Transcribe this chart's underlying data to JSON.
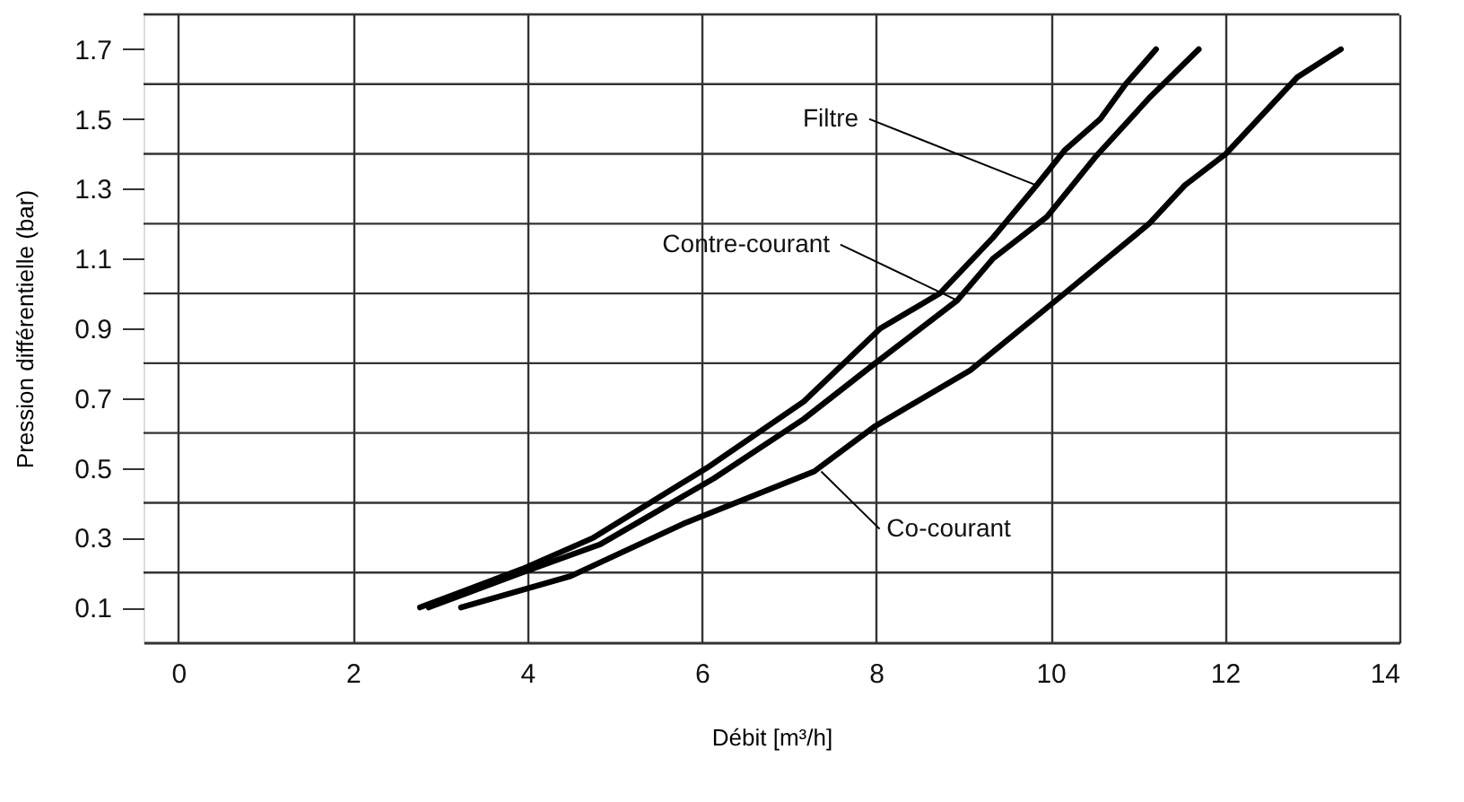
{
  "chart_data": {
    "type": "line",
    "xlabel": "Débit [m³/h]",
    "ylabel": "Pression différentielle (bar)",
    "xlim": [
      -0.4,
      14
    ],
    "xticks": [
      0,
      2,
      4,
      6,
      8,
      10,
      12,
      14
    ],
    "ylim": [
      0,
      1.8
    ],
    "yticks": [
      0.1,
      {
        "value": 0.2,
        "label": null
      },
      0.3,
      {
        "value": 0.4,
        "label": null
      },
      0.5,
      {
        "value": 0.6,
        "label": null
      },
      0.7,
      {
        "value": 0.8,
        "label": null
      },
      0.9,
      {
        "value": 1.0,
        "label": null
      },
      1.1,
      {
        "value": 1.2,
        "label": null
      },
      1.3,
      {
        "value": 1.4,
        "label": null
      },
      1.5,
      {
        "value": 1.6,
        "label": null
      },
      1.7,
      {
        "value": 1.8,
        "label": null
      }
    ],
    "grid": true,
    "legend": false,
    "line_style": "solid",
    "marker": "none",
    "series": [
      {
        "color": "#000000",
        "x": [
          2.77,
          3.94,
          4.76,
          6.06,
          7.17,
          8.05,
          8.73,
          9.34,
          9.84,
          10.16,
          10.57,
          10.86,
          11.21
        ],
        "values": [
          0.1,
          0.21,
          0.3,
          0.5,
          0.69,
          0.9,
          1.0,
          1.16,
          1.31,
          1.41,
          1.5,
          1.6,
          1.7
        ]
      },
      {
        "color": "#000000",
        "x": [
          2.87,
          3.94,
          4.83,
          6.14,
          7.17,
          7.99,
          8.93,
          9.34,
          9.96,
          10.51,
          11.13,
          11.7
        ],
        "values": [
          0.1,
          0.2,
          0.28,
          0.47,
          0.64,
          0.8,
          0.98,
          1.1,
          1.22,
          1.39,
          1.56,
          1.7
        ]
      },
      {
        "color": "#000000",
        "x": [
          3.24,
          4.5,
          5.79,
          7.29,
          7.99,
          9.08,
          10.16,
          11.13,
          11.54,
          12.01,
          12.83,
          13.33
        ],
        "values": [
          0.1,
          0.19,
          0.34,
          0.49,
          0.62,
          0.78,
          1.0,
          1.2,
          1.31,
          1.4,
          1.62,
          1.7
        ]
      }
    ],
    "annotations": [
      {
        "text": "Filtre",
        "x": 9.84,
        "y": 1.31
      },
      {
        "text": "Contre-courant",
        "x": 8.93,
        "y": 0.98
      },
      {
        "text": "Co-courant",
        "x": 7.37,
        "y": 0.49
      }
    ]
  }
}
